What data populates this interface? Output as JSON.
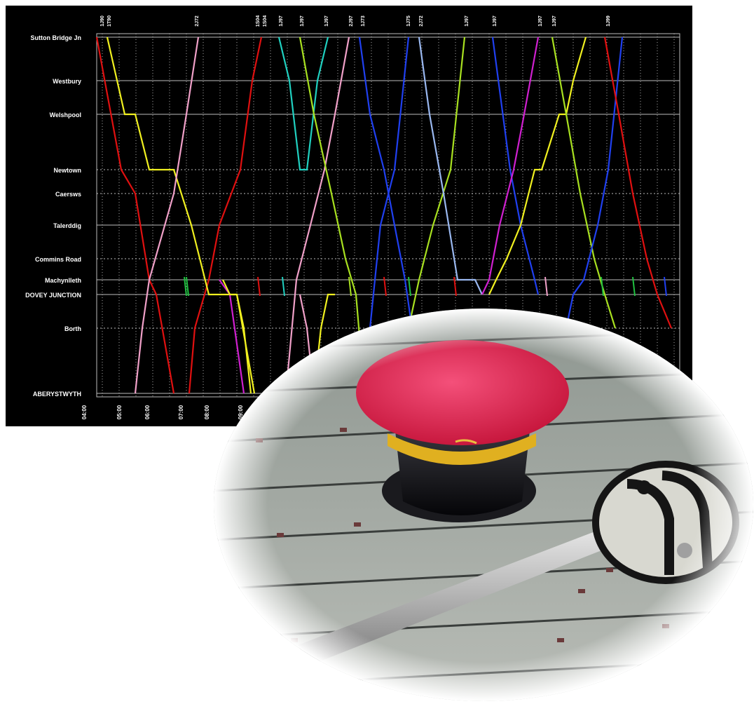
{
  "timetable": {
    "stations": [
      {
        "name": "Sutton Bridge Jn"
      },
      {
        "name": "Westbury"
      },
      {
        "name": "Welshpool"
      },
      {
        "name": "Newtown"
      },
      {
        "name": "Caersws"
      },
      {
        "name": "Talerddig"
      },
      {
        "name": "Commins Road"
      },
      {
        "name": "Machynlleth"
      },
      {
        "name": "DOVEY JUNCTION"
      },
      {
        "name": "Borth"
      },
      {
        "name": "ABERYSTWYTH"
      }
    ],
    "time_labels": [
      "04:00",
      "05:00",
      "06:00",
      "07:00",
      "08:00",
      "09:00"
    ],
    "train_labels": [
      "1J90",
      "1T90",
      "2J72",
      "1S04",
      "1S04",
      "1J97",
      "1J97",
      "1J97",
      "2J97",
      "1J73",
      "1J75",
      "2J72",
      "1J97",
      "1J97",
      "1J97",
      "1J97",
      "1J99"
    ],
    "line_colors": {
      "red": "#e01010",
      "yellow": "#f0f020",
      "pink": "#f0a0c8",
      "cyan": "#20d0c0",
      "lime": "#a8e020",
      "blue": "#2040f0",
      "magenta": "#d020d0",
      "lightblue": "#9ab8f0",
      "green": "#20c040"
    }
  },
  "photo": {
    "cap_color": "#e8285a",
    "cap_band_color": "#e0b020",
    "token_color": "#d8d8d0"
  }
}
